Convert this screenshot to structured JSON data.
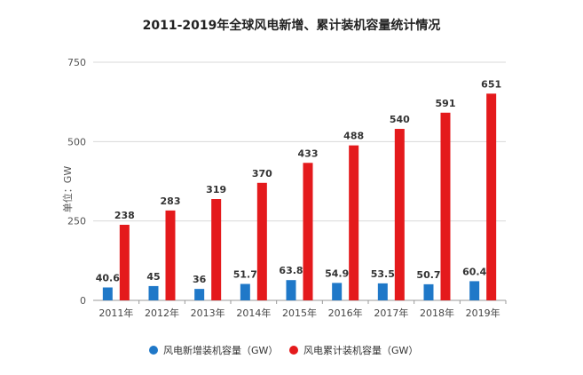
{
  "title": "2011-2019年全球风电新增、累计装机容量统计情况",
  "legend": {
    "new_label": "风电新增装机容量（GW）",
    "cum_label": "风电累计装机容量（GW）"
  },
  "colors": {
    "new": "#1f78c8",
    "cum": "#e41a1c",
    "grid": "#d9d9d9",
    "axis": "#999999"
  },
  "chart_data": {
    "type": "bar",
    "title": "2011-2019年全球风电新增、累计装机容量统计情况",
    "ylabel": "单位：GW",
    "xlabel": "",
    "categories": [
      "2011年",
      "2012年",
      "2013年",
      "2014年",
      "2015年",
      "2016年",
      "2017年",
      "2018年",
      "2019年"
    ],
    "series": [
      {
        "name": "风电新增装机容量（GW）",
        "values": [
          40.6,
          45,
          36,
          51.7,
          63.8,
          54.9,
          53.5,
          50.7,
          60.4
        ],
        "labels": [
          "40.6",
          "45",
          "36",
          "51.7",
          "63.8",
          "54.9",
          "53.5",
          "50.7",
          "60.4"
        ]
      },
      {
        "name": "风电累计装机容量（GW）",
        "values": [
          238,
          283,
          319,
          370,
          433,
          488,
          540,
          591,
          651
        ],
        "labels": [
          "238",
          "283",
          "319",
          "370",
          "433",
          "488",
          "540",
          "591",
          "651"
        ]
      }
    ],
    "yticks": [
      0,
      250,
      500,
      750
    ],
    "ylim": [
      0,
      750
    ],
    "grid": true,
    "legend_position": "bottom"
  }
}
